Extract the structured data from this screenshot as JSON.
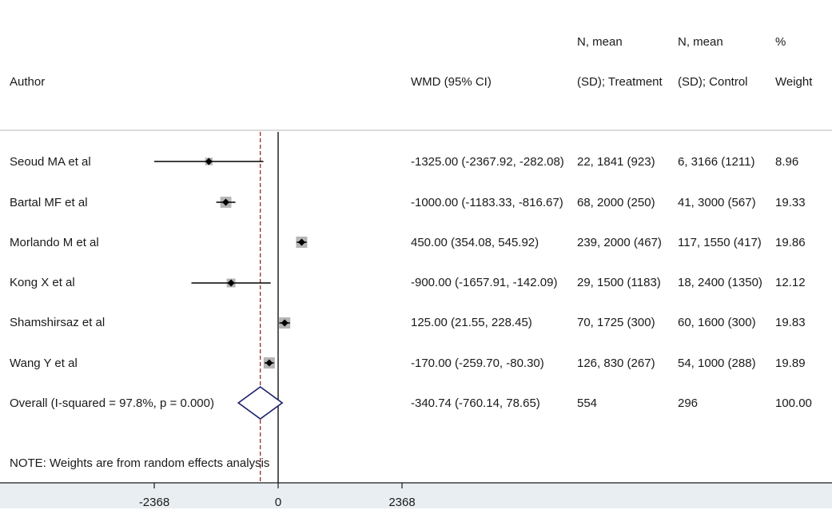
{
  "chart_data": {
    "type": "forest",
    "headers": {
      "author": "Author",
      "effect": "WMD (95% CI)",
      "treatment_line1": "N, mean",
      "treatment_line2": "(SD); Treatment",
      "control_line1": "N, mean",
      "control_line2": "(SD); Control",
      "weight_line1": "%",
      "weight_line2": "Weight"
    },
    "studies": [
      {
        "author": "Seoud MA et al",
        "wmd": -1325.0,
        "lower": -2367.92,
        "upper": -282.08,
        "ci_text": "-1325.00 (-2367.92, -282.08)",
        "treatment": "22, 1841 (923)",
        "control": "6, 3166 (1211)",
        "weight": "8.96"
      },
      {
        "author": "Bartal MF et al",
        "wmd": -1000.0,
        "lower": -1183.33,
        "upper": -816.67,
        "ci_text": "-1000.00 (-1183.33, -816.67)",
        "treatment": "68, 2000 (250)",
        "control": "41, 3000 (567)",
        "weight": "19.33"
      },
      {
        "author": "Morlando M et al",
        "wmd": 450.0,
        "lower": 354.08,
        "upper": 545.92,
        "ci_text": "450.00 (354.08, 545.92)",
        "treatment": "239, 2000 (467)",
        "control": "117, 1550 (417)",
        "weight": "19.86"
      },
      {
        "author": "Kong X et al",
        "wmd": -900.0,
        "lower": -1657.91,
        "upper": -142.09,
        "ci_text": "-900.00 (-1657.91, -142.09)",
        "treatment": "29, 1500 (1183)",
        "control": "18, 2400 (1350)",
        "weight": "12.12"
      },
      {
        "author": "Shamshirsaz et al",
        "wmd": 125.0,
        "lower": 21.55,
        "upper": 228.45,
        "ci_text": "125.00 (21.55, 228.45)",
        "treatment": "70, 1725 (300)",
        "control": "60, 1600 (300)",
        "weight": "19.83"
      },
      {
        "author": "Wang Y et al",
        "wmd": -170.0,
        "lower": -259.7,
        "upper": -80.3,
        "ci_text": "-170.00 (-259.70, -80.30)",
        "treatment": "126, 830 (267)",
        "control": "54, 1000 (288)",
        "weight": "19.89"
      }
    ],
    "overall": {
      "label": "Overall  (I-squared = 97.8%, p = 0.000)",
      "wmd": -340.74,
      "lower": -760.14,
      "upper": 78.65,
      "ci_text": "-340.74 (-760.14, 78.65)",
      "treatment": "554",
      "control": "296",
      "weight": "100.00"
    },
    "note": "NOTE: Weights are from random effects analysis",
    "x_ticks": [
      -2368,
      0,
      2368
    ],
    "x_tick_labels": [
      "-2368",
      "0",
      "2368"
    ],
    "xlim": [
      -2368,
      2368
    ],
    "null_line": 0,
    "colors": {
      "marker": "#000000",
      "weight_box": "#b5b5b5",
      "ci_line": "#000000",
      "overall_diamond": "#1a1f6b",
      "overall_line": "#8b1a1a",
      "header_rule": "#cfcfcf",
      "footer_band": "#e9eef2"
    }
  }
}
